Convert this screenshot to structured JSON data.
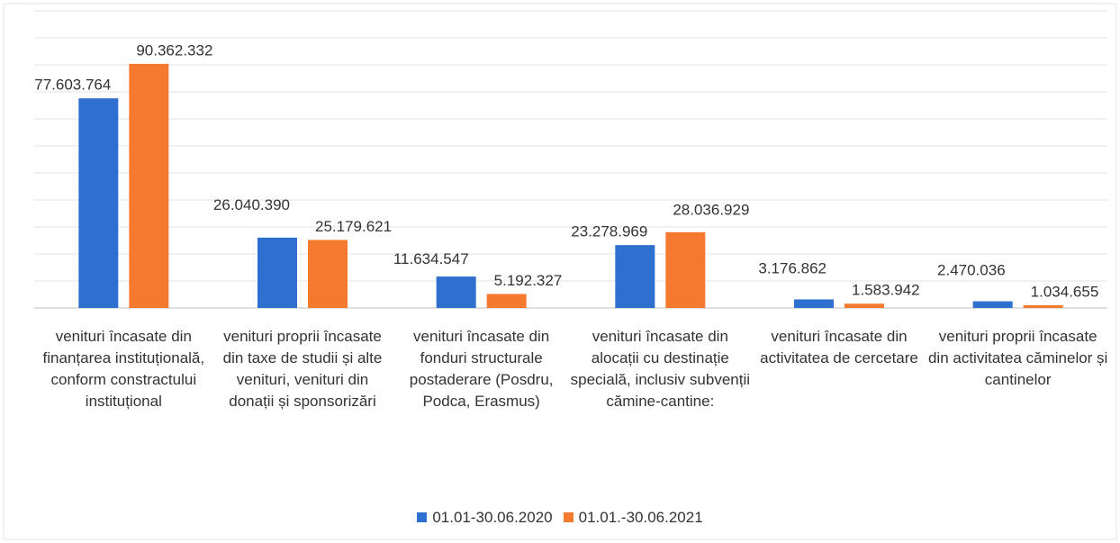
{
  "chart_data": {
    "type": "bar",
    "categories": [
      "venituri încasate din finanțarea instituțională, conform constractului instituțional",
      "venituri proprii încasate din taxe de studii și alte venituri, venituri din donații și sponsorizări",
      "venituri încasate din fonduri structurale postaderare (Posdru, Podca, Erasmus)",
      "venituri încasate din alocații cu destinație specială, inclusiv subvenții cămine-cantine:",
      "venituri încasate din activitatea de cercetare",
      "venituri proprii încasate din activitatea căminelor și cantinelor"
    ],
    "series": [
      {
        "name": "01.01-30.06.2020",
        "color": "#2f6fcf",
        "values": [
          77603764,
          26040390,
          11634547,
          23278969,
          3176862,
          2470036
        ],
        "value_labels": [
          "77.603.764",
          "26.040.390",
          "11.634.547",
          "23.278.969",
          "3.176.862",
          "2.470.036"
        ]
      },
      {
        "name": "01.01.-30.06.2021",
        "color": "#f47a30",
        "values": [
          90362332,
          25179621,
          5192327,
          28036929,
          1583942,
          1034655
        ],
        "value_labels": [
          "90.362.332",
          "25.179.621",
          "5.192.327",
          "28.036.929",
          "1.583.942",
          "1.034.655"
        ]
      }
    ],
    "ylim": [
      0,
      110000000
    ],
    "yticks": [
      0,
      10000000,
      20000000,
      30000000,
      40000000,
      50000000,
      60000000,
      70000000,
      80000000,
      90000000,
      100000000,
      110000000
    ],
    "grid": true,
    "legend": "bottom"
  }
}
